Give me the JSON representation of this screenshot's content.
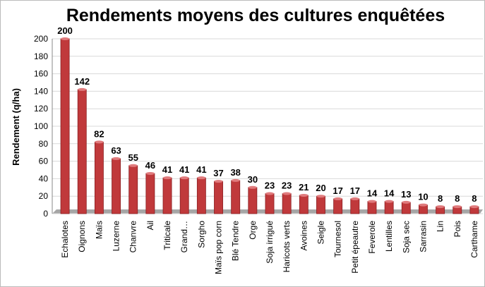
{
  "chart_data": {
    "type": "bar",
    "title": "Rendements moyens des cultures enquêtées",
    "y_label": "Rendement (q/ha)",
    "categories": [
      "Echalotes",
      "Oignons",
      "Maïs",
      "Luzerne",
      "Chanvre",
      "Ail",
      "Triticale",
      "Grand…",
      "Sorgho",
      "Maïs pop corn",
      "Blé Tendre",
      "Orge",
      "Soja irrigué",
      "Haricots verts",
      "Avoines",
      "Seigle",
      "Tournesol",
      "Petit épeautre",
      "Feverole",
      "Lentilles",
      "Soja sec",
      "Sarrasin",
      "Lin",
      "Pois",
      "Carthame"
    ],
    "values": [
      200,
      142,
      82,
      63,
      55,
      46,
      41,
      41,
      41,
      37,
      38,
      30,
      23,
      23,
      21,
      20,
      17,
      17,
      14,
      14,
      13,
      10,
      8,
      8,
      8
    ],
    "color": "#c0393b",
    "ylim": [
      0,
      200
    ],
    "yticks": [
      0,
      20,
      40,
      60,
      80,
      100,
      120,
      140,
      160,
      180,
      200
    ],
    "grid": true
  }
}
